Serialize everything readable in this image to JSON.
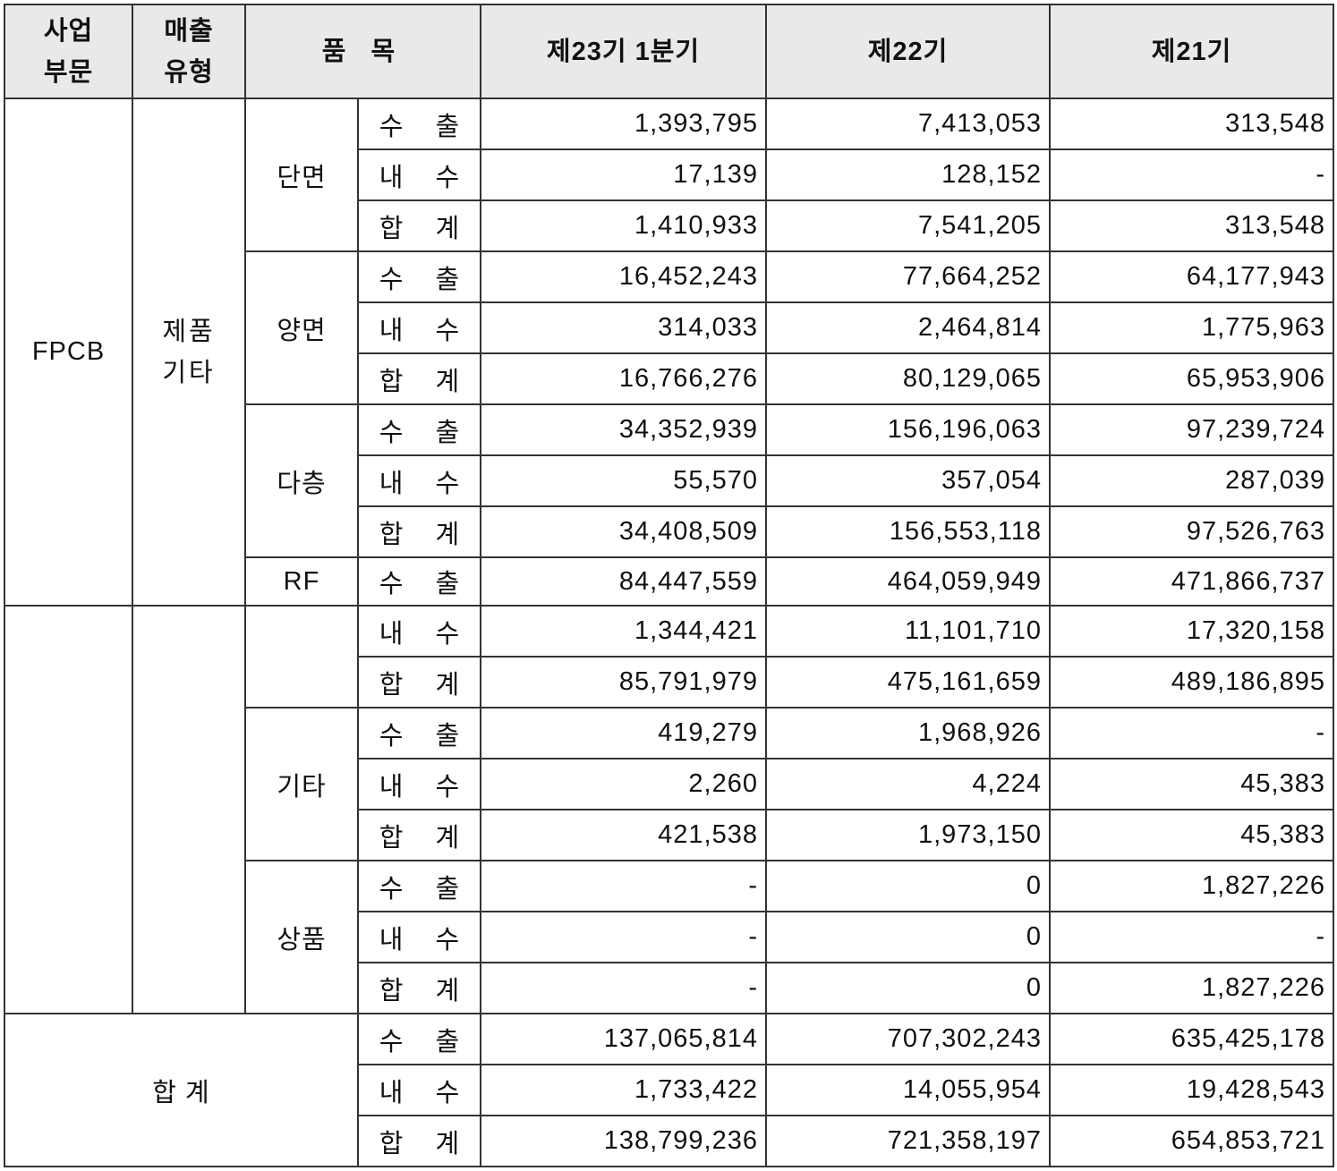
{
  "header": {
    "segment": "사업\n부문",
    "sales_type": "매출\n유형",
    "item": "품 목",
    "periods": [
      "제23기 1분기",
      "제22기",
      "제21기"
    ]
  },
  "segment_label": "FPCB",
  "sales_type_label": "제품\n기타",
  "total_label": "합 계",
  "rows": [
    {
      "group": "단면",
      "kind": "수 출",
      "values": [
        "1,393,795",
        "7,413,053",
        "313,548"
      ]
    },
    {
      "group": "단면",
      "kind": "내 수",
      "values": [
        "17,139",
        "128,152",
        "-"
      ]
    },
    {
      "group": "단면",
      "kind": "합 계",
      "values": [
        "1,410,933",
        "7,541,205",
        "313,548"
      ]
    },
    {
      "group": "양면",
      "kind": "수 출",
      "values": [
        "16,452,243",
        "77,664,252",
        "64,177,943"
      ]
    },
    {
      "group": "양면",
      "kind": "내 수",
      "values": [
        "314,033",
        "2,464,814",
        "1,775,963"
      ]
    },
    {
      "group": "양면",
      "kind": "합 계",
      "values": [
        "16,766,276",
        "80,129,065",
        "65,953,906"
      ]
    },
    {
      "group": "다층",
      "kind": "수 출",
      "values": [
        "34,352,939",
        "156,196,063",
        "97,239,724"
      ]
    },
    {
      "group": "다층",
      "kind": "내 수",
      "values": [
        "55,570",
        "357,054",
        "287,039"
      ]
    },
    {
      "group": "다층",
      "kind": "합 계",
      "values": [
        "34,408,509",
        "156,553,118",
        "97,526,763"
      ]
    },
    {
      "group": "RF",
      "kind": "수 출",
      "values": [
        "84,447,559",
        "464,059,949",
        "471,866,737"
      ]
    },
    {
      "group": "",
      "kind": "내 수",
      "values": [
        "1,344,421",
        "11,101,710",
        "17,320,158"
      ]
    },
    {
      "group": "",
      "kind": "합 계",
      "values": [
        "85,791,979",
        "475,161,659",
        "489,186,895"
      ]
    },
    {
      "group": "기타",
      "kind": "수 출",
      "values": [
        "419,279",
        "1,968,926",
        "-"
      ]
    },
    {
      "group": "기타",
      "kind": "내 수",
      "values": [
        "2,260",
        "4,224",
        "45,383"
      ]
    },
    {
      "group": "기타",
      "kind": "합 계",
      "values": [
        "421,538",
        "1,973,150",
        "45,383"
      ]
    },
    {
      "group": "상품",
      "kind": "수 출",
      "values": [
        "-",
        "0",
        "1,827,226"
      ]
    },
    {
      "group": "상품",
      "kind": "내 수",
      "values": [
        "-",
        "0",
        "-"
      ]
    },
    {
      "group": "상품",
      "kind": "합 계",
      "values": [
        "-",
        "0",
        "1,827,226"
      ]
    },
    {
      "group": "",
      "kind": "수 출",
      "values": [
        "137,065,814",
        "707,302,243",
        "635,425,178"
      ]
    },
    {
      "group": "",
      "kind": "내 수",
      "values": [
        "1,733,422",
        "14,055,954",
        "19,428,543"
      ]
    },
    {
      "group": "",
      "kind": "합 계",
      "values": [
        "138,799,236",
        "721,358,197",
        "654,853,721"
      ]
    }
  ]
}
